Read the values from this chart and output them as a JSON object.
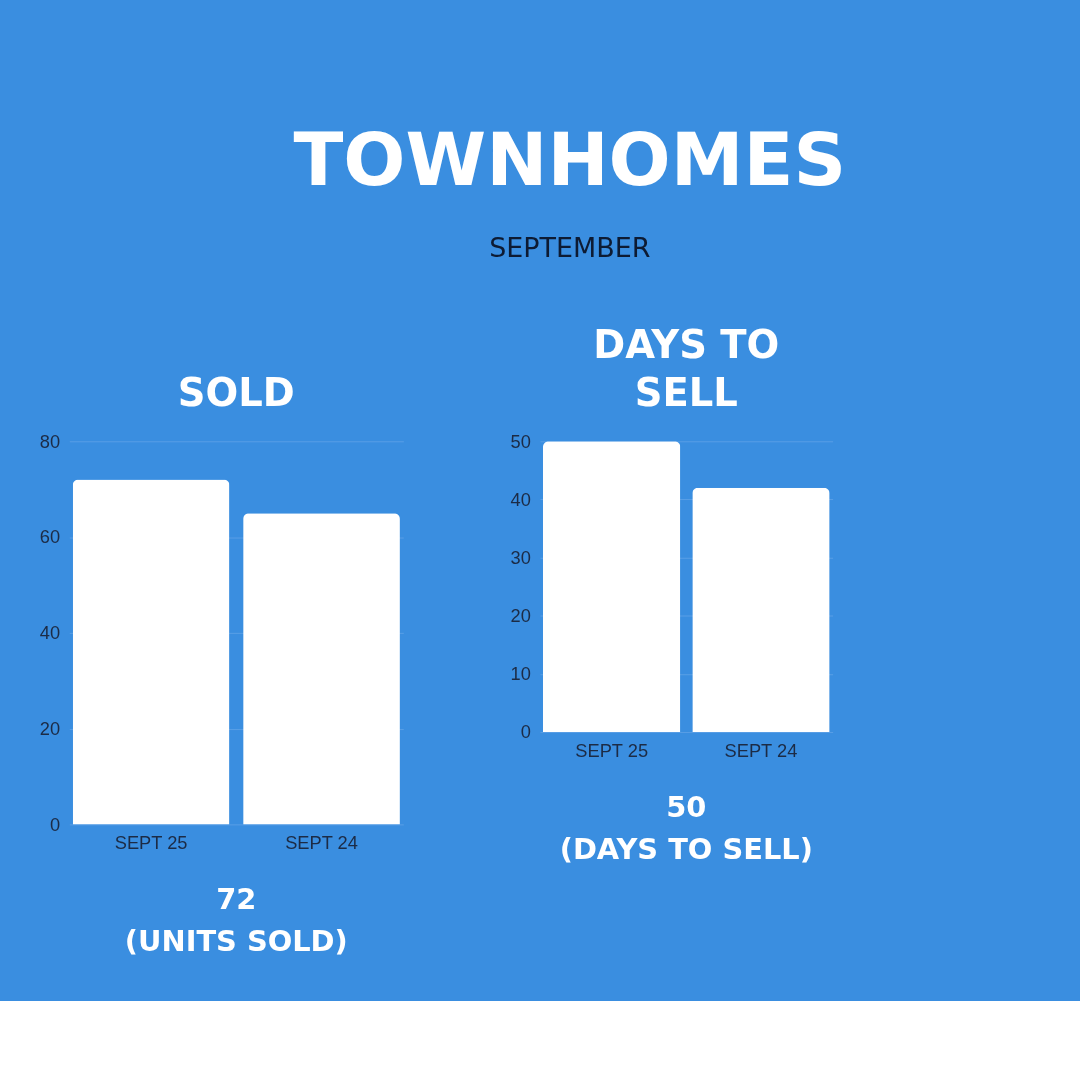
{
  "chart_data": [
    {
      "type": "bar",
      "title": "SOLD",
      "categories": [
        "SEPT 25",
        "SEPT 24"
      ],
      "values": [
        72,
        65
      ],
      "color": "#ffffff",
      "ylim": [
        0,
        80
      ],
      "yticks": [
        0,
        20,
        40,
        60,
        80
      ],
      "grid": "y",
      "annotations": [
        "TOWNHOMES",
        "SEPTEMBER",
        "72",
        "(UNITS SOLD)"
      ]
    },
    {
      "type": "bar",
      "title": "DAYS TO SELL",
      "categories": [
        "SEPT 25",
        "SEPT 24"
      ],
      "values": [
        50,
        42
      ],
      "color": "#ffffff",
      "ylim": [
        0,
        50
      ],
      "yticks": [
        0,
        10,
        20,
        30,
        40,
        50
      ],
      "grid": "y",
      "annotations": [
        "50",
        "(DAYS TO SELL)"
      ]
    }
  ]
}
